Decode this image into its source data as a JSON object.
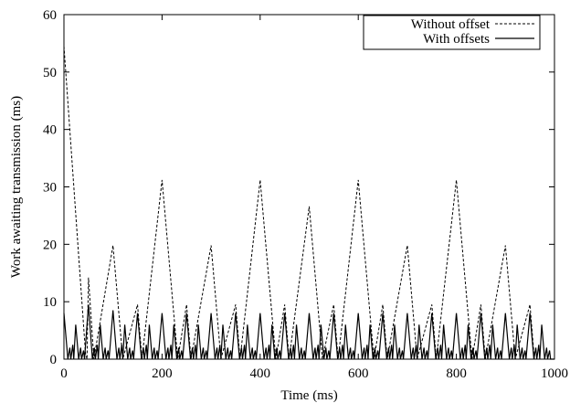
{
  "chart_data": {
    "type": "line",
    "title": "",
    "xlabel": "Time (ms)",
    "ylabel": "Work awaiting transmission (ms)",
    "xlim": [
      0,
      1000
    ],
    "ylim": [
      0,
      60
    ],
    "xticks": [
      0,
      200,
      400,
      600,
      800,
      1000
    ],
    "yticks": [
      0,
      10,
      20,
      30,
      40,
      50,
      60
    ],
    "xtick_labels": [
      "0",
      "200",
      "400",
      "600",
      "800",
      "1000"
    ],
    "ytick_labels": [
      "0",
      "10",
      "20",
      "30",
      "40",
      "50",
      "60"
    ],
    "grid": false,
    "legend_position": "top-right",
    "series": [
      {
        "name": "Without offset",
        "style": "dashed",
        "points": [
          [
            0,
            54.5
          ],
          [
            44,
            1
          ],
          [
            47,
            0
          ],
          [
            50,
            14.2
          ],
          [
            61,
            0
          ],
          [
            100,
            19.8
          ],
          [
            120,
            0
          ],
          [
            150,
            9.5
          ],
          [
            159,
            0
          ],
          [
            200,
            31.2
          ],
          [
            232,
            0
          ],
          [
            250,
            9.5
          ],
          [
            259,
            0
          ],
          [
            300,
            19.8
          ],
          [
            320,
            0
          ],
          [
            350,
            9.5
          ],
          [
            359,
            0
          ],
          [
            400,
            31.2
          ],
          [
            432,
            0
          ],
          [
            450,
            9.5
          ],
          [
            459,
            0
          ],
          [
            500,
            26.6
          ],
          [
            527,
            0
          ],
          [
            550,
            9.5
          ],
          [
            559,
            0
          ],
          [
            600,
            31.2
          ],
          [
            632,
            0
          ],
          [
            650,
            9.5
          ],
          [
            659,
            0
          ],
          [
            700,
            19.8
          ],
          [
            720,
            0
          ],
          [
            750,
            9.5
          ],
          [
            759,
            0
          ],
          [
            800,
            31.2
          ],
          [
            832,
            0
          ],
          [
            850,
            9.5
          ],
          [
            859,
            0
          ],
          [
            900,
            19.8
          ],
          [
            920,
            0
          ],
          [
            950,
            9.5
          ],
          [
            959,
            0
          ],
          [
            1000,
            0
          ]
        ]
      },
      {
        "name": "With offsets",
        "style": "solid",
        "points": [
          [
            0,
            8
          ],
          [
            8,
            0
          ],
          [
            12,
            2
          ],
          [
            14,
            0
          ],
          [
            18,
            2.5
          ],
          [
            20,
            0
          ],
          [
            24,
            6
          ],
          [
            30,
            0
          ],
          [
            34,
            2
          ],
          [
            36,
            0
          ],
          [
            40,
            1.5
          ],
          [
            42,
            0
          ],
          [
            50,
            9.5
          ],
          [
            58,
            0
          ],
          [
            62,
            2
          ],
          [
            64,
            0
          ],
          [
            68,
            2.5
          ],
          [
            70,
            0
          ],
          [
            74,
            6
          ],
          [
            80,
            0
          ],
          [
            84,
            2
          ],
          [
            86,
            0
          ],
          [
            90,
            1.5
          ],
          [
            92,
            0
          ],
          [
            100,
            8.5
          ],
          [
            108,
            0
          ],
          [
            112,
            2
          ],
          [
            114,
            0
          ],
          [
            118,
            2.5
          ],
          [
            120,
            0
          ],
          [
            124,
            6
          ],
          [
            130,
            0
          ],
          [
            134,
            2
          ],
          [
            136,
            0
          ],
          [
            140,
            1.5
          ],
          [
            142,
            0
          ],
          [
            150,
            8
          ],
          [
            158,
            0
          ],
          [
            162,
            2
          ],
          [
            164,
            0
          ],
          [
            168,
            2.5
          ],
          [
            170,
            0
          ],
          [
            174,
            6
          ],
          [
            180,
            0
          ],
          [
            184,
            2
          ],
          [
            186,
            0
          ],
          [
            190,
            1.5
          ],
          [
            192,
            0
          ],
          [
            200,
            8
          ],
          [
            208,
            0
          ],
          [
            212,
            2
          ],
          [
            214,
            0
          ],
          [
            218,
            2.5
          ],
          [
            220,
            0
          ],
          [
            224,
            6
          ],
          [
            230,
            0
          ],
          [
            234,
            2
          ],
          [
            236,
            0
          ],
          [
            240,
            1.5
          ],
          [
            242,
            0
          ],
          [
            250,
            8
          ],
          [
            258,
            0
          ],
          [
            262,
            2
          ],
          [
            264,
            0
          ],
          [
            268,
            2.5
          ],
          [
            270,
            0
          ],
          [
            274,
            6
          ],
          [
            280,
            0
          ],
          [
            284,
            2
          ],
          [
            286,
            0
          ],
          [
            290,
            1.5
          ],
          [
            292,
            0
          ],
          [
            300,
            8
          ],
          [
            308,
            0
          ],
          [
            312,
            2
          ],
          [
            314,
            0
          ],
          [
            318,
            2.5
          ],
          [
            320,
            0
          ],
          [
            324,
            6
          ],
          [
            330,
            0
          ],
          [
            334,
            2
          ],
          [
            336,
            0
          ],
          [
            340,
            1.5
          ],
          [
            342,
            0
          ],
          [
            350,
            8
          ],
          [
            358,
            0
          ],
          [
            362,
            2
          ],
          [
            364,
            0
          ],
          [
            368,
            2.5
          ],
          [
            370,
            0
          ],
          [
            374,
            6
          ],
          [
            380,
            0
          ],
          [
            384,
            2
          ],
          [
            386,
            0
          ],
          [
            390,
            1.5
          ],
          [
            392,
            0
          ],
          [
            400,
            8
          ],
          [
            408,
            0
          ],
          [
            412,
            2
          ],
          [
            414,
            0
          ],
          [
            418,
            2.5
          ],
          [
            420,
            0
          ],
          [
            424,
            6
          ],
          [
            430,
            0
          ],
          [
            434,
            2
          ],
          [
            436,
            0
          ],
          [
            440,
            1.5
          ],
          [
            442,
            0
          ],
          [
            450,
            8
          ],
          [
            458,
            0
          ],
          [
            462,
            2
          ],
          [
            464,
            0
          ],
          [
            468,
            2.5
          ],
          [
            470,
            0
          ],
          [
            474,
            6
          ],
          [
            480,
            0
          ],
          [
            484,
            2
          ],
          [
            486,
            0
          ],
          [
            490,
            1.5
          ],
          [
            492,
            0
          ],
          [
            500,
            8
          ],
          [
            508,
            0
          ],
          [
            512,
            2
          ],
          [
            514,
            0
          ],
          [
            518,
            2.5
          ],
          [
            520,
            0
          ],
          [
            524,
            6
          ],
          [
            530,
            0
          ],
          [
            534,
            2
          ],
          [
            536,
            0
          ],
          [
            540,
            1.5
          ],
          [
            542,
            0
          ],
          [
            550,
            8
          ],
          [
            558,
            0
          ],
          [
            562,
            2
          ],
          [
            564,
            0
          ],
          [
            568,
            2.5
          ],
          [
            570,
            0
          ],
          [
            574,
            6
          ],
          [
            580,
            0
          ],
          [
            584,
            2
          ],
          [
            586,
            0
          ],
          [
            590,
            1.5
          ],
          [
            592,
            0
          ],
          [
            600,
            8
          ],
          [
            608,
            0
          ],
          [
            612,
            2
          ],
          [
            614,
            0
          ],
          [
            618,
            2.5
          ],
          [
            620,
            0
          ],
          [
            624,
            6
          ],
          [
            630,
            0
          ],
          [
            634,
            2
          ],
          [
            636,
            0
          ],
          [
            640,
            1.5
          ],
          [
            642,
            0
          ],
          [
            650,
            8
          ],
          [
            658,
            0
          ],
          [
            662,
            2
          ],
          [
            664,
            0
          ],
          [
            668,
            2.5
          ],
          [
            670,
            0
          ],
          [
            674,
            6
          ],
          [
            680,
            0
          ],
          [
            684,
            2
          ],
          [
            686,
            0
          ],
          [
            690,
            1.5
          ],
          [
            692,
            0
          ],
          [
            700,
            8
          ],
          [
            708,
            0
          ],
          [
            712,
            2
          ],
          [
            714,
            0
          ],
          [
            718,
            2.5
          ],
          [
            720,
            0
          ],
          [
            724,
            6
          ],
          [
            730,
            0
          ],
          [
            734,
            2
          ],
          [
            736,
            0
          ],
          [
            740,
            1.5
          ],
          [
            742,
            0
          ],
          [
            750,
            8
          ],
          [
            758,
            0
          ],
          [
            762,
            2
          ],
          [
            764,
            0
          ],
          [
            768,
            2.5
          ],
          [
            770,
            0
          ],
          [
            774,
            6
          ],
          [
            780,
            0
          ],
          [
            784,
            2
          ],
          [
            786,
            0
          ],
          [
            790,
            1.5
          ],
          [
            792,
            0
          ],
          [
            800,
            8
          ],
          [
            808,
            0
          ],
          [
            812,
            2
          ],
          [
            814,
            0
          ],
          [
            818,
            2.5
          ],
          [
            820,
            0
          ],
          [
            824,
            6
          ],
          [
            830,
            0
          ],
          [
            834,
            2
          ],
          [
            836,
            0
          ],
          [
            840,
            1.5
          ],
          [
            842,
            0
          ],
          [
            850,
            8
          ],
          [
            858,
            0
          ],
          [
            862,
            2
          ],
          [
            864,
            0
          ],
          [
            868,
            2.5
          ],
          [
            870,
            0
          ],
          [
            874,
            6
          ],
          [
            880,
            0
          ],
          [
            884,
            2
          ],
          [
            886,
            0
          ],
          [
            890,
            1.5
          ],
          [
            892,
            0
          ],
          [
            900,
            8
          ],
          [
            908,
            0
          ],
          [
            912,
            2
          ],
          [
            914,
            0
          ],
          [
            918,
            2.5
          ],
          [
            920,
            0
          ],
          [
            924,
            6
          ],
          [
            930,
            0
          ],
          [
            934,
            2
          ],
          [
            936,
            0
          ],
          [
            940,
            1.5
          ],
          [
            942,
            0
          ],
          [
            950,
            8
          ],
          [
            958,
            0
          ],
          [
            962,
            2
          ],
          [
            964,
            0
          ],
          [
            968,
            2.5
          ],
          [
            970,
            0
          ],
          [
            974,
            6
          ],
          [
            980,
            0
          ],
          [
            984,
            2
          ],
          [
            986,
            0
          ],
          [
            990,
            1.5
          ],
          [
            992,
            0
          ],
          [
            1000,
            0
          ]
        ]
      }
    ]
  }
}
